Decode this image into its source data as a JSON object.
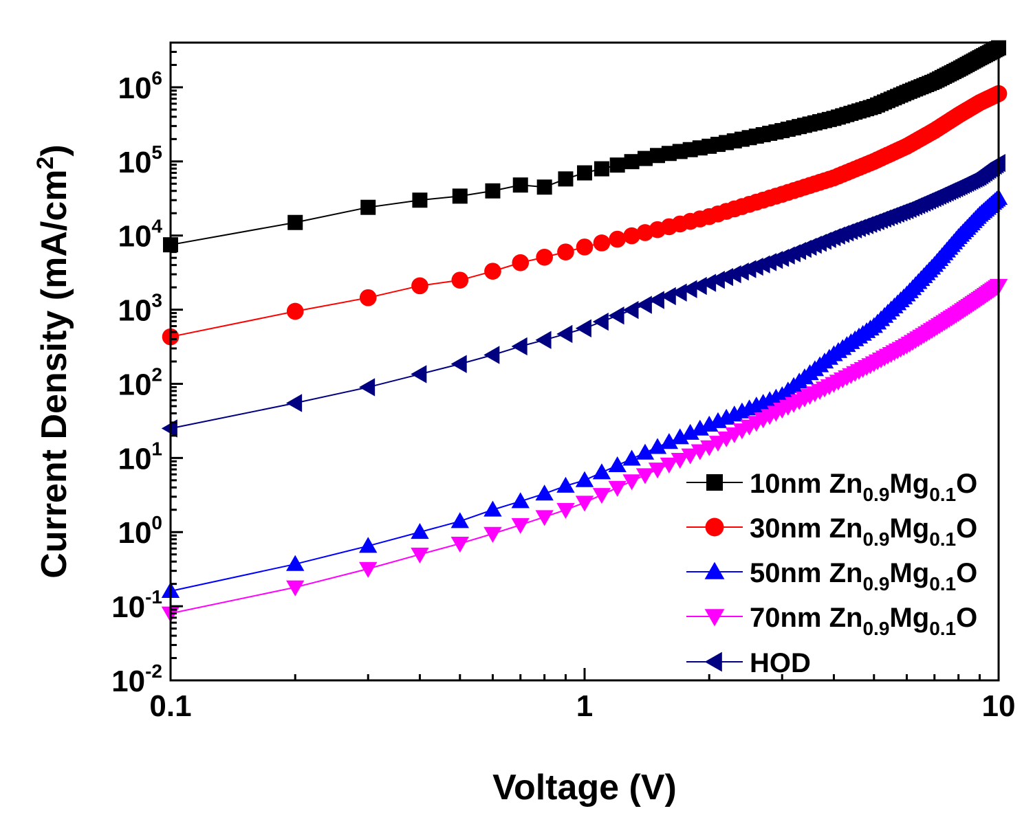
{
  "chart_data": {
    "type": "scatter",
    "xscale": "log",
    "yscale": "log",
    "xlim": [
      0.1,
      10
    ],
    "ylim": [
      0.01,
      4000000
    ],
    "xlabel": "Voltage (V)",
    "ylabel": {
      "main": "Current Density (mA/cm",
      "sup": "2",
      "close": ")"
    },
    "x_ticks": [
      {
        "value": 0.1,
        "label": "0.1"
      },
      {
        "value": 1,
        "label": "1"
      },
      {
        "value": 10,
        "label": "10"
      }
    ],
    "y_ticks": [
      {
        "value": 0.01,
        "base": "10",
        "exp": "-2"
      },
      {
        "value": 0.1,
        "base": "10",
        "exp": "-1"
      },
      {
        "value": 1,
        "base": "10",
        "exp": "0"
      },
      {
        "value": 10,
        "base": "10",
        "exp": "1"
      },
      {
        "value": 100,
        "base": "10",
        "exp": "2"
      },
      {
        "value": 1000,
        "base": "10",
        "exp": "3"
      },
      {
        "value": 10000,
        "base": "10",
        "exp": "4"
      },
      {
        "value": 100000,
        "base": "10",
        "exp": "5"
      },
      {
        "value": 1000000,
        "base": "10",
        "exp": "6"
      }
    ],
    "legend_position": "bottom-right",
    "series": [
      {
        "name": "10nm Zn0.9Mg0.1O",
        "label_parts": {
          "prefix": "10nm Zn",
          "sub1": "0.9",
          "mid": "Mg",
          "sub2": "0.1",
          "suffix": "O"
        },
        "color": "#000000",
        "marker": "square",
        "anchors": [
          [
            0.1,
            7500
          ],
          [
            0.2,
            15000
          ],
          [
            0.3,
            24000
          ],
          [
            0.4,
            30000
          ],
          [
            0.5,
            34000
          ],
          [
            0.6,
            40000
          ],
          [
            0.7,
            48000
          ],
          [
            0.8,
            45000
          ],
          [
            0.9,
            58000
          ],
          [
            1.0,
            70000
          ],
          [
            1.5,
            120000
          ],
          [
            2.0,
            160000
          ],
          [
            3.0,
            260000
          ],
          [
            4.0,
            380000
          ],
          [
            5.0,
            550000
          ],
          [
            6.0,
            850000
          ],
          [
            7.0,
            1200000
          ],
          [
            8.0,
            1750000
          ],
          [
            9.0,
            2500000
          ],
          [
            10.0,
            3400000
          ]
        ]
      },
      {
        "name": "30nm Zn0.9Mg0.1O",
        "label_parts": {
          "prefix": "30nm Zn",
          "sub1": "0.9",
          "mid": "Mg",
          "sub2": "0.1",
          "suffix": "O"
        },
        "color": "#ff0000",
        "marker": "circle",
        "anchors": [
          [
            0.1,
            430
          ],
          [
            0.2,
            950
          ],
          [
            0.3,
            1450
          ],
          [
            0.4,
            2100
          ],
          [
            0.5,
            2500
          ],
          [
            0.6,
            3300
          ],
          [
            0.7,
            4300
          ],
          [
            0.8,
            5100
          ],
          [
            0.9,
            6000
          ],
          [
            1.0,
            7000
          ],
          [
            1.5,
            12000
          ],
          [
            2.0,
            18000
          ],
          [
            3.0,
            36000
          ],
          [
            4.0,
            60000
          ],
          [
            5.0,
            100000
          ],
          [
            6.0,
            160000
          ],
          [
            7.0,
            260000
          ],
          [
            8.0,
            420000
          ],
          [
            9.0,
            620000
          ],
          [
            10.0,
            820000
          ]
        ]
      },
      {
        "name": "50nm Zn0.9Mg0.1O",
        "label_parts": {
          "prefix": "50nm Zn",
          "sub1": "0.9",
          "mid": "Mg",
          "sub2": "0.1",
          "suffix": "O"
        },
        "color": "#0000ff",
        "marker": "triangle-up",
        "anchors": [
          [
            0.1,
            0.16
          ],
          [
            0.2,
            0.37
          ],
          [
            0.3,
            0.65
          ],
          [
            0.4,
            1.0
          ],
          [
            0.5,
            1.4
          ],
          [
            0.6,
            2.0
          ],
          [
            0.7,
            2.6
          ],
          [
            0.8,
            3.3
          ],
          [
            0.9,
            4.2
          ],
          [
            1.0,
            5.0
          ],
          [
            1.5,
            14
          ],
          [
            2.0,
            28
          ],
          [
            3.0,
            70
          ],
          [
            4.0,
            250
          ],
          [
            5.0,
            600
          ],
          [
            6.0,
            1600
          ],
          [
            7.0,
            4000
          ],
          [
            8.0,
            9500
          ],
          [
            9.0,
            19000
          ],
          [
            10.0,
            32000
          ]
        ]
      },
      {
        "name": "70nm Zn0.9Mg0.1O",
        "label_parts": {
          "prefix": "70nm Zn",
          "sub1": "0.9",
          "mid": "Mg",
          "sub2": "0.1",
          "suffix": "O"
        },
        "color": "#ff00ff",
        "marker": "triangle-down",
        "anchors": [
          [
            0.1,
            0.08
          ],
          [
            0.2,
            0.18
          ],
          [
            0.3,
            0.32
          ],
          [
            0.4,
            0.5
          ],
          [
            0.5,
            0.7
          ],
          [
            0.6,
            0.95
          ],
          [
            0.7,
            1.25
          ],
          [
            0.8,
            1.6
          ],
          [
            0.9,
            2.0
          ],
          [
            1.0,
            2.5
          ],
          [
            1.5,
            7
          ],
          [
            2.0,
            14
          ],
          [
            3.0,
            45
          ],
          [
            4.0,
            100
          ],
          [
            5.0,
            190
          ],
          [
            6.0,
            330
          ],
          [
            7.0,
            560
          ],
          [
            8.0,
            900
          ],
          [
            9.0,
            1400
          ],
          [
            10.0,
            2100
          ]
        ]
      },
      {
        "name": "HOD",
        "label_parts": {
          "prefix": "HOD",
          "sub1": "",
          "mid": "",
          "sub2": "",
          "suffix": ""
        },
        "color": "#000080",
        "marker": "triangle-left",
        "anchors": [
          [
            0.1,
            25
          ],
          [
            0.2,
            55
          ],
          [
            0.3,
            90
          ],
          [
            0.4,
            135
          ],
          [
            0.5,
            185
          ],
          [
            0.6,
            245
          ],
          [
            0.7,
            320
          ],
          [
            0.8,
            390
          ],
          [
            0.9,
            470
          ],
          [
            1.0,
            560
          ],
          [
            1.5,
            1350
          ],
          [
            2.0,
            2300
          ],
          [
            3.0,
            5000
          ],
          [
            4.0,
            9500
          ],
          [
            5.0,
            15000
          ],
          [
            6.0,
            22000
          ],
          [
            7.0,
            32000
          ],
          [
            8.0,
            45000
          ],
          [
            9.0,
            62000
          ],
          [
            10.0,
            95000
          ]
        ]
      }
    ]
  }
}
